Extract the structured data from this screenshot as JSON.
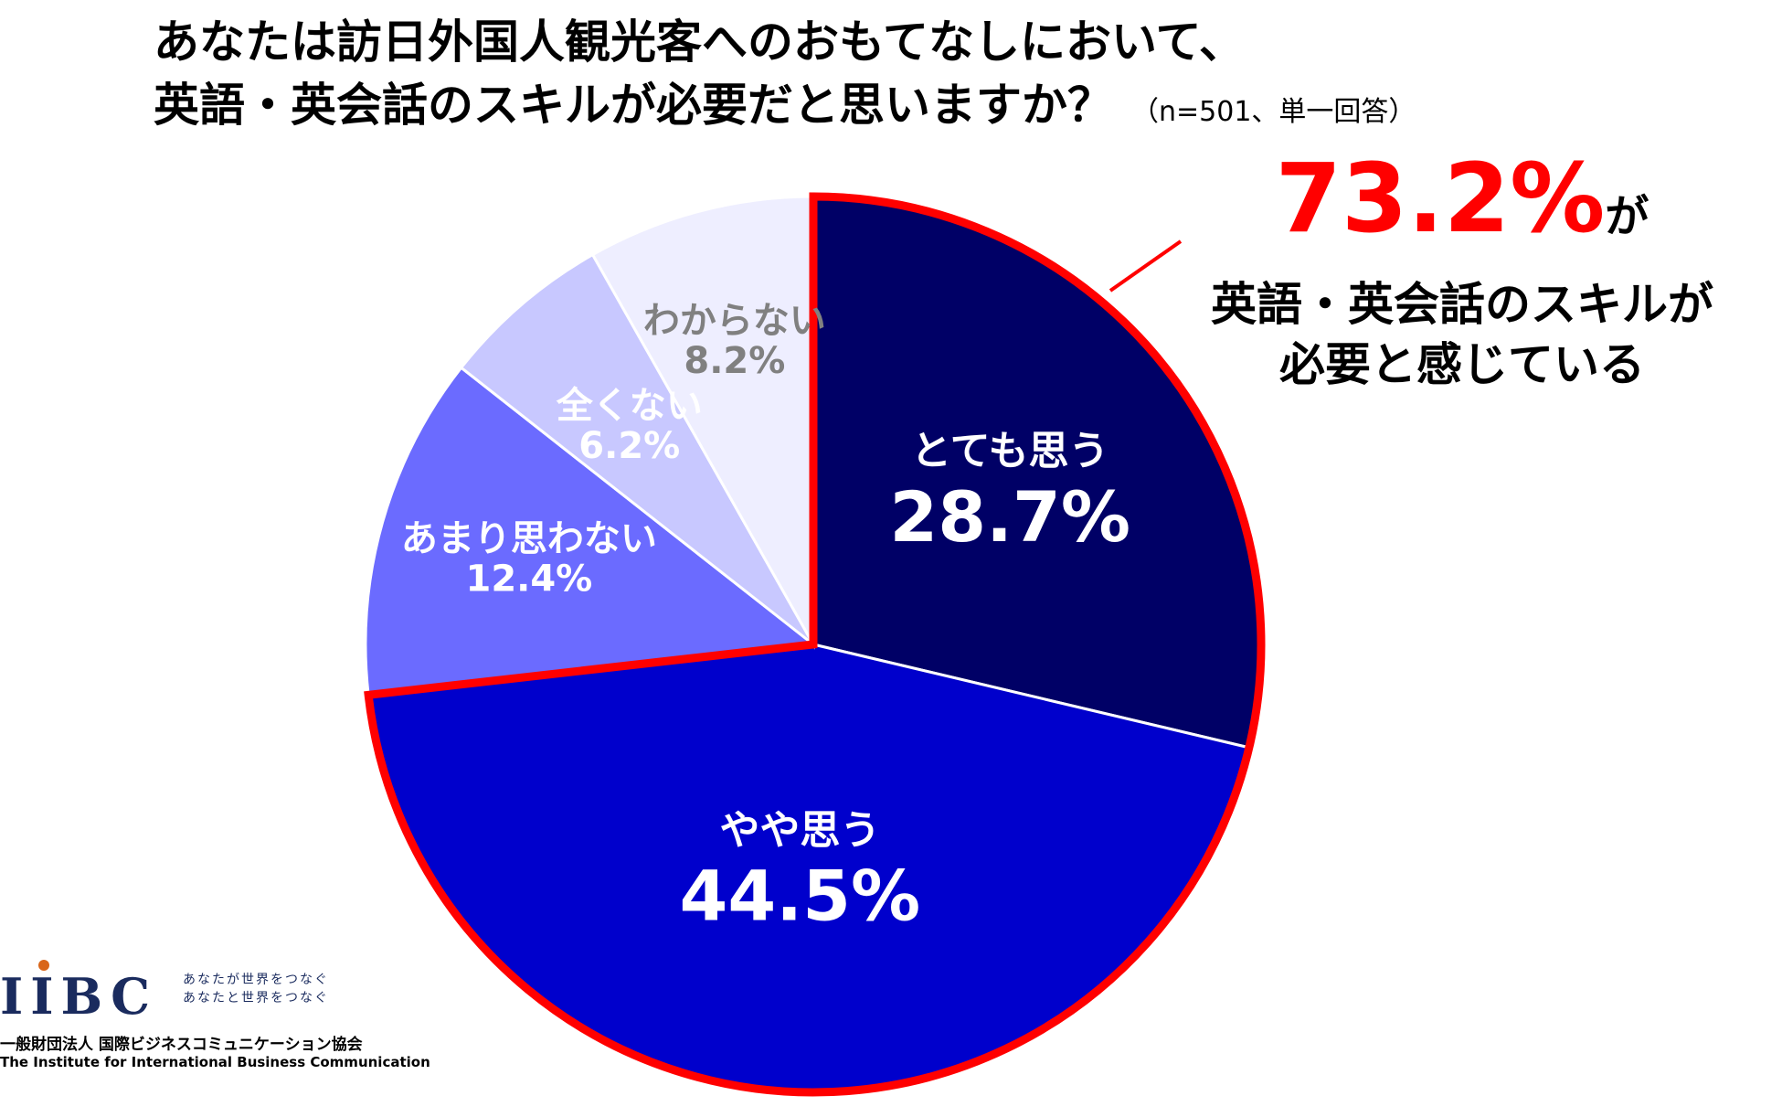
{
  "title": {
    "line1": "あなたは訪日外国人観光客へのおもてなしにおいて、",
    "line2": "英語・英会話のスキルが必要だと思いますか？",
    "note": "（n=501、単一回答）"
  },
  "callout": {
    "value": "73.2%",
    "suffix": "が",
    "line1": "英語・英会話のスキルが",
    "line2": "必要と感じている",
    "color": "#ff0000"
  },
  "chart_data": {
    "type": "pie",
    "unit": "%",
    "start": "12 o'clock, clockwise",
    "slices": [
      {
        "label": "とても思う",
        "value_label": "28.7%",
        "value": 28.7,
        "color": "#000066",
        "text_color": "#ffffff",
        "highlight": true
      },
      {
        "label": "やや思う",
        "value_label": "44.5%",
        "value": 44.5,
        "color": "#0000cc",
        "text_color": "#ffffff",
        "highlight": true
      },
      {
        "label": "あまり思わない",
        "value_label": "12.4%",
        "value": 12.4,
        "color": "#6b6bff",
        "text_color": "#ffffff",
        "highlight": false
      },
      {
        "label": "全くない",
        "value_label": "6.2%",
        "value": 6.2,
        "color": "#c8c8ff",
        "text_color": "#ffffff",
        "highlight": false
      },
      {
        "label": "わからない",
        "value_label": "8.2%",
        "value": 8.2,
        "color": "#eeeeff",
        "text_color": "#808080",
        "highlight": false
      }
    ],
    "highlight_total": "73.2%",
    "highlight_stroke": "#ff0000"
  },
  "logo": {
    "brand": "IIBC",
    "tagline1": "あなたが世界をつなぐ",
    "tagline2": "あなたと世界をつなぐ",
    "org_jp": "一般財団法人 国際ビジネスコミュニケーション協会",
    "org_en": "The Institute for International Business Communication",
    "accent_color": "#d9661a",
    "brand_color": "#1a2b5e"
  }
}
